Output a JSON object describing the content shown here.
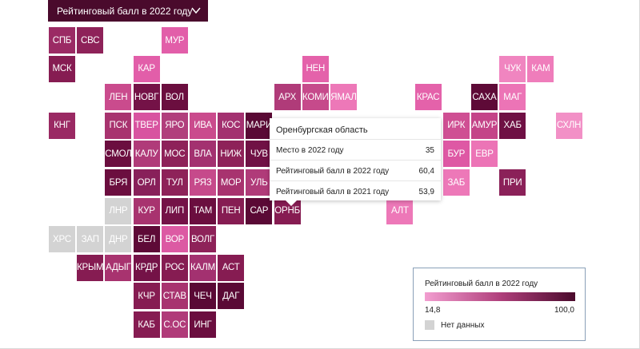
{
  "selector": {
    "label": "Рейтинговый балл в 2022 году",
    "icon": "chevron-down-icon"
  },
  "regions": [
    {
      "code": "СПБ",
      "c": 0,
      "r": 0,
      "color": "#9b2a64"
    },
    {
      "code": "СВС",
      "c": 1,
      "r": 0,
      "color": "#8e2259"
    },
    {
      "code": "МУР",
      "c": 4,
      "r": 0,
      "color": "#e25ea9"
    },
    {
      "code": "МСК",
      "c": 0,
      "r": 1,
      "color": "#861c52"
    },
    {
      "code": "КАР",
      "c": 3,
      "r": 1,
      "color": "#e25ea9"
    },
    {
      "code": "НЕН",
      "c": 9,
      "r": 1,
      "color": "#e462aa"
    },
    {
      "code": "ЧУК",
      "c": 16,
      "r": 1,
      "color": "#f085c0"
    },
    {
      "code": "КАМ",
      "c": 17,
      "r": 1,
      "color": "#ef7dbb"
    },
    {
      "code": "ЛЕН",
      "c": 2,
      "r": 2,
      "color": "#ca4b8d"
    },
    {
      "code": "НОВГ",
      "c": 3,
      "r": 2,
      "color": "#741247"
    },
    {
      "code": "ВОЛ",
      "c": 4,
      "r": 2,
      "color": "#6b0e3f"
    },
    {
      "code": "АРХ",
      "c": 8,
      "r": 2,
      "color": "#b03b79"
    },
    {
      "code": "КОМИ",
      "c": 9,
      "r": 2,
      "color": "#c64a8b"
    },
    {
      "code": "ЯМАЛ",
      "c": 10,
      "r": 2,
      "color": "#ed78b8"
    },
    {
      "code": "КРАС",
      "c": 13,
      "r": 2,
      "color": "#e462aa"
    },
    {
      "code": "САХА",
      "c": 15,
      "r": 2,
      "color": "#5e0a37"
    },
    {
      "code": "МАГ",
      "c": 16,
      "r": 2,
      "color": "#ec74b6"
    },
    {
      "code": "КНГ",
      "c": 0,
      "r": 3,
      "color": "#9a2963"
    },
    {
      "code": "ПСК",
      "c": 2,
      "r": 3,
      "color": "#a8336f"
    },
    {
      "code": "ТВЕР",
      "c": 3,
      "r": 3,
      "color": "#d853a0"
    },
    {
      "code": "ЯРО",
      "c": 4,
      "r": 3,
      "color": "#b13f7c"
    },
    {
      "code": "ИВА",
      "c": 5,
      "r": 3,
      "color": "#ca4b8d"
    },
    {
      "code": "КОС",
      "c": 6,
      "r": 3,
      "color": "#a33170"
    },
    {
      "code": "МАРИ",
      "c": 7,
      "r": 3,
      "color": "#5a0935"
    },
    {
      "code": "ИРК",
      "c": 14,
      "r": 3,
      "color": "#cf4f93"
    },
    {
      "code": "АМУР",
      "c": 15,
      "r": 3,
      "color": "#c44488"
    },
    {
      "code": "ХАБ",
      "c": 16,
      "r": 3,
      "color": "#6f1044"
    },
    {
      "code": "СХЛН",
      "c": 18,
      "r": 3,
      "color": "#f290c6"
    },
    {
      "code": "СМОЛ",
      "c": 2,
      "r": 4,
      "color": "#6b0e3f"
    },
    {
      "code": "КАЛУ",
      "c": 3,
      "r": 4,
      "color": "#b03b79"
    },
    {
      "code": "МОС",
      "c": 4,
      "r": 4,
      "color": "#8e2259"
    },
    {
      "code": "ВЛА",
      "c": 5,
      "r": 4,
      "color": "#a33170"
    },
    {
      "code": "НИЖ",
      "c": 6,
      "r": 4,
      "color": "#8e2259"
    },
    {
      "code": "ЧУВ",
      "c": 7,
      "r": 4,
      "color": "#701145"
    },
    {
      "code": "БУР",
      "c": 14,
      "r": 4,
      "color": "#de58a4"
    },
    {
      "code": "ЕВР",
      "c": 15,
      "r": 4,
      "color": "#ec74b6"
    },
    {
      "code": "БРЯ",
      "c": 2,
      "r": 5,
      "color": "#6b0e3f"
    },
    {
      "code": "ОРЛ",
      "c": 3,
      "r": 5,
      "color": "#88205a"
    },
    {
      "code": "ТУЛ",
      "c": 4,
      "r": 5,
      "color": "#8e2259"
    },
    {
      "code": "РЯЗ",
      "c": 5,
      "r": 5,
      "color": "#c64a8b"
    },
    {
      "code": "МОР",
      "c": 6,
      "r": 5,
      "color": "#a8336f"
    },
    {
      "code": "УЛЬ",
      "c": 7,
      "r": 5,
      "color": "#b03b79"
    },
    {
      "code": "ЗАБ",
      "c": 14,
      "r": 5,
      "color": "#ed78b8"
    },
    {
      "code": "ПРИ",
      "c": 16,
      "r": 5,
      "color": "#8b2159"
    },
    {
      "code": "ЛНР",
      "c": 2,
      "r": 6,
      "color": "#d3d3d3"
    },
    {
      "code": "КУР",
      "c": 3,
      "r": 6,
      "color": "#a8336f"
    },
    {
      "code": "ЛИП",
      "c": 4,
      "r": 6,
      "color": "#741247"
    },
    {
      "code": "ТАМ",
      "c": 5,
      "r": 6,
      "color": "#6b0e3f"
    },
    {
      "code": "ПЕН",
      "c": 6,
      "r": 6,
      "color": "#861c52"
    },
    {
      "code": "САР",
      "c": 7,
      "r": 6,
      "color": "#5a0935"
    },
    {
      "code": "ОРНБ",
      "c": 8,
      "r": 6,
      "color": "#861c52"
    },
    {
      "code": "АЛТ",
      "c": 12,
      "r": 6,
      "color": "#ed78b8"
    },
    {
      "code": "ХРС",
      "c": 0,
      "r": 7,
      "color": "#d3d3d3"
    },
    {
      "code": "ЗАП",
      "c": 1,
      "r": 7,
      "color": "#d3d3d3"
    },
    {
      "code": "ДНР",
      "c": 2,
      "r": 7,
      "color": "#d3d3d3"
    },
    {
      "code": "БЕЛ",
      "c": 3,
      "r": 7,
      "color": "#5e0a37"
    },
    {
      "code": "ВОР",
      "c": 4,
      "r": 7,
      "color": "#dc5aa3"
    },
    {
      "code": "ВОЛГ",
      "c": 5,
      "r": 7,
      "color": "#8e2259"
    },
    {
      "code": "КРЫМ",
      "c": 1,
      "r": 8,
      "color": "#861c52"
    },
    {
      "code": "АДЫГ",
      "c": 2,
      "r": 8,
      "color": "#a8336f"
    },
    {
      "code": "КРДР",
      "c": 3,
      "r": 8,
      "color": "#741247"
    },
    {
      "code": "РОС",
      "c": 4,
      "r": 8,
      "color": "#861c52"
    },
    {
      "code": "КАЛМ",
      "c": 5,
      "r": 8,
      "color": "#a33170"
    },
    {
      "code": "АСТ",
      "c": 6,
      "r": 8,
      "color": "#861c52"
    },
    {
      "code": "КЧР",
      "c": 3,
      "r": 9,
      "color": "#861c52"
    },
    {
      "code": "СТАВ",
      "c": 4,
      "r": 9,
      "color": "#a8336f"
    },
    {
      "code": "ЧЕЧ",
      "c": 5,
      "r": 9,
      "color": "#5a0935"
    },
    {
      "code": "ДАГ",
      "c": 6,
      "r": 9,
      "color": "#5a0935"
    },
    {
      "code": "КАБ",
      "c": 3,
      "r": 10,
      "color": "#861c52"
    },
    {
      "code": "С.ОС",
      "c": 4,
      "r": 10,
      "color": "#b03b79"
    },
    {
      "code": "ИНГ",
      "c": 5,
      "r": 10,
      "color": "#6b0e3f"
    }
  ],
  "tooltip": {
    "title": "Оренбургская область",
    "rows": [
      {
        "label": "Место в 2022 году",
        "value": "35"
      },
      {
        "label": "Рейтинговый балл в 2022 году",
        "value": "60,4"
      },
      {
        "label": "Рейтинговый балл в 2021 году",
        "value": "53,9"
      }
    ]
  },
  "legend": {
    "title": "Рейтинговый балл в 2022 году",
    "min": "14,8",
    "max": "100,0",
    "no_data": "Нет данных",
    "color_low": "#f29ed0",
    "color_high": "#4a0a2c",
    "color_no_data": "#d3d3d3"
  }
}
